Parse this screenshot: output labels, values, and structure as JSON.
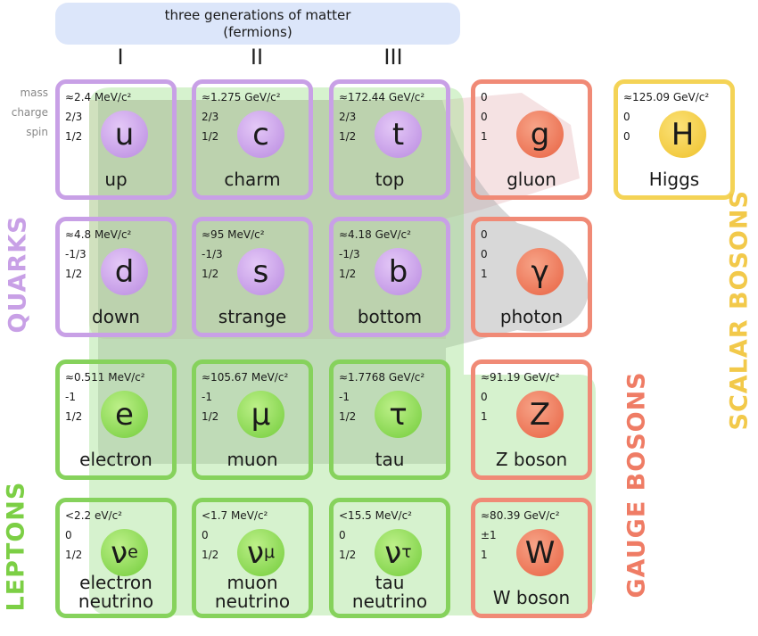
{
  "header": {
    "line1": "three generations of matter",
    "line2": "(fermions)"
  },
  "generations": [
    "I",
    "II",
    "III"
  ],
  "row_labels": [
    "mass",
    "charge",
    "spin"
  ],
  "particles": {
    "up": {
      "mass": "≈2.4 MeV/c²",
      "charge": "2/3",
      "spin": "1/2",
      "symbol": "u",
      "name": "up"
    },
    "charm": {
      "mass": "≈1.275 GeV/c²",
      "charge": "2/3",
      "spin": "1/2",
      "symbol": "c",
      "name": "charm"
    },
    "top": {
      "mass": "≈172.44 GeV/c²",
      "charge": "2/3",
      "spin": "1/2",
      "symbol": "t",
      "name": "top"
    },
    "down": {
      "mass": "≈4.8 MeV/c²",
      "charge": "-1/3",
      "spin": "1/2",
      "symbol": "d",
      "name": "down"
    },
    "strange": {
      "mass": "≈95 MeV/c²",
      "charge": "-1/3",
      "spin": "1/2",
      "symbol": "s",
      "name": "strange"
    },
    "bottom": {
      "mass": "≈4.18 GeV/c²",
      "charge": "-1/3",
      "spin": "1/2",
      "symbol": "b",
      "name": "bottom"
    },
    "electron": {
      "mass": "≈0.511 MeV/c²",
      "charge": "-1",
      "spin": "1/2",
      "symbol": "e",
      "name": "electron"
    },
    "muon": {
      "mass": "≈105.67 MeV/c²",
      "charge": "-1",
      "spin": "1/2",
      "symbol": "μ",
      "name": "muon"
    },
    "tau": {
      "mass": "≈1.7768 GeV/c²",
      "charge": "-1",
      "spin": "1/2",
      "symbol": "τ",
      "name": "tau"
    },
    "nu_e": {
      "mass": "<2.2 eV/c²",
      "charge": "0",
      "spin": "1/2",
      "symbol": "ν",
      "subscript": "e",
      "name1": "electron",
      "name2": "neutrino"
    },
    "nu_mu": {
      "mass": "<1.7 MeV/c²",
      "charge": "0",
      "spin": "1/2",
      "symbol": "ν",
      "subscript": "μ",
      "name1": "muon",
      "name2": "neutrino"
    },
    "nu_tau": {
      "mass": "<15.5 MeV/c²",
      "charge": "0",
      "spin": "1/2",
      "symbol": "ν",
      "subscript": "τ",
      "name1": "tau",
      "name2": "neutrino"
    },
    "gluon": {
      "mass": "0",
      "charge": "0",
      "spin": "1",
      "symbol": "g",
      "name": "gluon"
    },
    "photon": {
      "mass": "0",
      "charge": "0",
      "spin": "1",
      "symbol": "γ",
      "name": "photon"
    },
    "z_boson": {
      "mass": "≈91.19 GeV/c²",
      "charge": "0",
      "spin": "1",
      "symbol": "Z",
      "name": "Z boson"
    },
    "w_boson": {
      "mass": "≈80.39 GeV/c²",
      "charge": "±1",
      "spin": "1",
      "symbol": "W",
      "name": "W boson"
    },
    "higgs": {
      "mass": "≈125.09 GeV/c²",
      "charge": "0",
      "spin": "0",
      "symbol": "H",
      "name": "Higgs"
    }
  },
  "group_labels": {
    "quarks": "QUARKS",
    "leptons": "LEPTONS",
    "gauge_bosons": "GAUGE BOSONS",
    "scalar_bosons": "SCALAR BOSONS"
  },
  "colors": {
    "quark": "#c8a0e6",
    "lepton": "#86d25c",
    "gauge": "#f08a76",
    "scalar": "#f4d356",
    "header_bg": "#dce6fa"
  }
}
